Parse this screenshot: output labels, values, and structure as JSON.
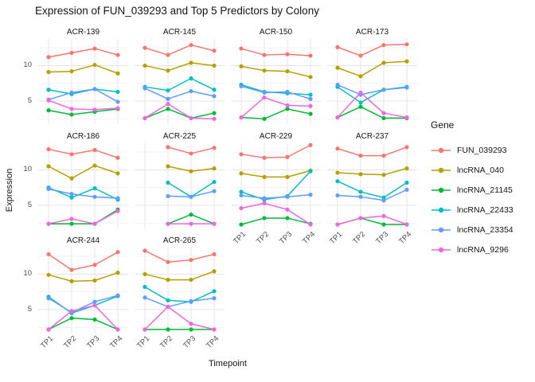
{
  "title": "Expression of FUN_039293 and Top 5 Predictors by Colony",
  "axes": {
    "x_title": "Timepoint",
    "y_title": "Expression",
    "x_ticks": [
      "TP1",
      "TP2",
      "TP3",
      "TP4"
    ],
    "y_ticks": [
      "5",
      "10"
    ],
    "y_tick_values": [
      5,
      10
    ]
  },
  "legend": {
    "title": "Gene",
    "items": [
      {
        "label": "FUN_039293",
        "color": "#F8766D"
      },
      {
        "label": "lncRNA_040",
        "color": "#B79F00"
      },
      {
        "label": "lncRNA_21145",
        "color": "#00BA38"
      },
      {
        "label": "lncRNA_22433",
        "color": "#00BFC4"
      },
      {
        "label": "lncRNA_23354",
        "color": "#619CFF"
      },
      {
        "label": "lncRNA_9296",
        "color": "#F564E3"
      }
    ]
  },
  "chart_data": {
    "type": "line",
    "x": [
      "TP1",
      "TP2",
      "TP3",
      "TP4"
    ],
    "ylim": [
      1.75,
      13.75
    ],
    "grid_major_y": [
      5,
      10
    ],
    "grid_minor_y": [
      2.5,
      7.5,
      12.5
    ],
    "legend_position": "right",
    "series_order": [
      "FUN_039293",
      "lncRNA_040",
      "lncRNA_21145",
      "lncRNA_22433",
      "lncRNA_23354",
      "lncRNA_9296"
    ],
    "facets": [
      {
        "name": "ACR-139",
        "show_x_labels": false,
        "values": [
          [
            11.2,
            11.8,
            12.4,
            11.5
          ],
          [
            9.1,
            9.2,
            10.1,
            8.9
          ],
          [
            3.7,
            3.1,
            3.5,
            3.9
          ],
          [
            6.6,
            6.0,
            6.7,
            6.3
          ],
          [
            5.2,
            6.2,
            6.7,
            4.9
          ],
          [
            5.1,
            3.9,
            3.8,
            4.0
          ]
        ]
      },
      {
        "name": "ACR-145",
        "show_x_labels": false,
        "values": [
          [
            12.5,
            11.5,
            12.9,
            12.1
          ],
          [
            10.0,
            9.3,
            10.4,
            10.0
          ],
          [
            2.6,
            3.9,
            2.6,
            3.3
          ],
          [
            7.0,
            6.5,
            8.2,
            6.6
          ],
          [
            6.8,
            5.3,
            6.4,
            5.7
          ],
          [
            2.6,
            4.6,
            2.6,
            2.5
          ]
        ]
      },
      {
        "name": "ACR-150",
        "show_x_labels": false,
        "values": [
          [
            12.4,
            11.5,
            11.6,
            11.4
          ],
          [
            9.9,
            9.3,
            9.2,
            8.4
          ],
          [
            2.7,
            2.5,
            3.9,
            3.2
          ],
          [
            7.3,
            6.3,
            6.1,
            5.9
          ],
          [
            7.1,
            6.2,
            6.3,
            5.3
          ],
          [
            2.7,
            5.5,
            4.4,
            4.3
          ]
        ]
      },
      {
        "name": "ACR-173",
        "show_x_labels": false,
        "values": [
          [
            12.6,
            11.4,
            12.9,
            13.0
          ],
          [
            9.7,
            8.5,
            10.4,
            10.6
          ],
          [
            2.7,
            4.2,
            2.6,
            2.6
          ],
          [
            7.0,
            4.8,
            6.6,
            7.0
          ],
          [
            7.3,
            5.9,
            6.6,
            6.9
          ],
          [
            2.7,
            6.2,
            3.3,
            2.7
          ]
        ]
      },
      {
        "name": "ACR-186",
        "show_x_labels": false,
        "values": [
          [
            12.9,
            12.2,
            12.8,
            11.7
          ],
          [
            10.5,
            8.8,
            10.6,
            9.5
          ],
          [
            2.4,
            2.4,
            2.4,
            4.4
          ],
          [
            7.5,
            6.1,
            7.4,
            5.8
          ],
          [
            7.3,
            6.6,
            6.2,
            6.0
          ],
          [
            2.4,
            3.1,
            2.4,
            4.2
          ]
        ]
      },
      {
        "name": "ACR-225",
        "show_x_labels": false,
        "values": [
          [
            null,
            13.2,
            12.3,
            13.1
          ],
          [
            null,
            10.5,
            9.8,
            10.2
          ],
          [
            null,
            2.4,
            3.7,
            2.4
          ],
          [
            null,
            8.2,
            6.2,
            8.3
          ],
          [
            null,
            6.3,
            6.2,
            7.0
          ],
          [
            null,
            2.4,
            2.4,
            2.4
          ]
        ]
      },
      {
        "name": "ACR-229",
        "show_x_labels": true,
        "values": [
          [
            12.2,
            11.7,
            11.8,
            13.5
          ],
          [
            9.5,
            9.0,
            9.0,
            9.9
          ],
          [
            2.3,
            3.2,
            3.2,
            2.4
          ],
          [
            6.9,
            5.8,
            6.3,
            9.8
          ],
          [
            6.4,
            6.0,
            6.2,
            6.5
          ],
          [
            4.6,
            5.3,
            4.4,
            2.3
          ]
        ]
      },
      {
        "name": "ACR-237",
        "show_x_labels": true,
        "values": [
          [
            13.0,
            12.0,
            12.0,
            13.2
          ],
          [
            9.6,
            9.4,
            9.3,
            10.2
          ],
          [
            2.3,
            3.2,
            2.3,
            2.3
          ],
          [
            8.4,
            6.9,
            6.1,
            8.2
          ],
          [
            6.4,
            6.2,
            5.7,
            7.2
          ],
          [
            2.3,
            3.2,
            3.5,
            2.3
          ]
        ]
      },
      {
        "name": "ACR-244",
        "show_x_labels": true,
        "values": [
          [
            12.8,
            10.6,
            11.3,
            13.1
          ],
          [
            9.9,
            9.0,
            9.1,
            10.2
          ],
          [
            2.2,
            3.8,
            3.6,
            2.2
          ],
          [
            6.8,
            4.5,
            5.6,
            6.9
          ],
          [
            6.6,
            4.6,
            6.1,
            7.0
          ],
          [
            2.2,
            4.8,
            5.6,
            2.2
          ]
        ]
      },
      {
        "name": "ACR-265",
        "show_x_labels": true,
        "values": [
          [
            13.3,
            11.7,
            12.0,
            12.8
          ],
          [
            10.0,
            9.2,
            9.2,
            10.4
          ],
          [
            2.2,
            2.2,
            2.2,
            2.2
          ],
          [
            8.2,
            6.3,
            6.1,
            7.6
          ],
          [
            6.7,
            5.4,
            6.2,
            6.6
          ],
          [
            2.2,
            5.4,
            3.0,
            2.2
          ]
        ]
      }
    ]
  }
}
